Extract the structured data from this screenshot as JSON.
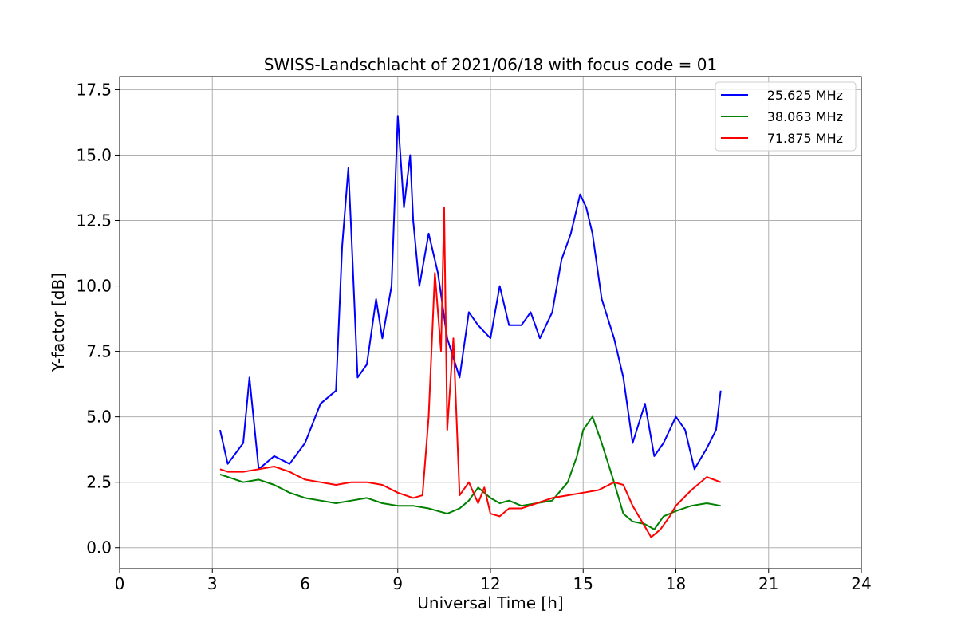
{
  "chart_data": {
    "type": "line",
    "title": "SWISS-Landschlacht of 2021/06/18 with focus code = 01",
    "xlabel": "Universal Time [h]",
    "ylabel": "Y-factor [dB]",
    "xlim": [
      0,
      24
    ],
    "ylim": [
      -0.8,
      18.0
    ],
    "xticks": [
      0,
      3,
      6,
      9,
      12,
      15,
      18,
      21,
      24
    ],
    "xtick_labels": [
      "0",
      "3",
      "6",
      "9",
      "12",
      "15",
      "18",
      "21",
      "24"
    ],
    "yticks": [
      0,
      2.5,
      5,
      7.5,
      10,
      12.5,
      15,
      17.5
    ],
    "ytick_labels": [
      "0.0",
      "2.5",
      "5.0",
      "7.5",
      "10.0",
      "12.5",
      "15.0",
      "17.5"
    ],
    "grid": true,
    "legend_position": "top-right",
    "series": [
      {
        "name": "25.625 MHz",
        "color": "#0000ff",
        "x": [
          3.25,
          3.5,
          4.0,
          4.2,
          4.5,
          5.0,
          5.5,
          6.0,
          6.5,
          7.0,
          7.2,
          7.4,
          7.5,
          7.7,
          8.0,
          8.3,
          8.5,
          8.8,
          9.0,
          9.2,
          9.4,
          9.5,
          9.7,
          10.0,
          10.3,
          10.6,
          11.0,
          11.3,
          11.6,
          12.0,
          12.3,
          12.6,
          13.0,
          13.3,
          13.6,
          14.0,
          14.3,
          14.6,
          14.9,
          15.1,
          15.3,
          15.6,
          16.0,
          16.3,
          16.6,
          17.0,
          17.3,
          17.6,
          18.0,
          18.3,
          18.6,
          19.0,
          19.3,
          19.45
        ],
        "y": [
          4.5,
          3.2,
          4.0,
          6.5,
          3.0,
          3.5,
          3.2,
          4.0,
          5.5,
          6.0,
          11.5,
          14.5,
          12.0,
          6.5,
          7.0,
          9.5,
          8.0,
          10.0,
          16.5,
          13.0,
          15.0,
          12.5,
          10.0,
          12.0,
          10.5,
          8.0,
          6.5,
          9.0,
          8.5,
          8.0,
          10.0,
          8.5,
          8.5,
          9.0,
          8.0,
          9.0,
          11.0,
          12.0,
          13.5,
          13.0,
          12.0,
          9.5,
          8.0,
          6.5,
          4.0,
          5.5,
          3.5,
          4.0,
          5.0,
          4.5,
          3.0,
          3.8,
          4.5,
          6.0
        ]
      },
      {
        "name": "38.063 MHz",
        "color": "#008000",
        "x": [
          3.25,
          3.5,
          4.0,
          4.5,
          5.0,
          5.5,
          6.0,
          6.5,
          7.0,
          7.5,
          8.0,
          8.5,
          9.0,
          9.5,
          10.0,
          10.3,
          10.6,
          11.0,
          11.3,
          11.6,
          12.0,
          12.3,
          12.6,
          13.0,
          13.5,
          14.0,
          14.5,
          14.8,
          15.0,
          15.3,
          15.6,
          16.0,
          16.3,
          16.6,
          17.0,
          17.3,
          17.6,
          18.0,
          18.5,
          19.0,
          19.45
        ],
        "y": [
          2.8,
          2.7,
          2.5,
          2.6,
          2.4,
          2.1,
          1.9,
          1.8,
          1.7,
          1.8,
          1.9,
          1.7,
          1.6,
          1.6,
          1.5,
          1.4,
          1.3,
          1.5,
          1.8,
          2.3,
          1.9,
          1.7,
          1.8,
          1.6,
          1.7,
          1.8,
          2.5,
          3.5,
          4.5,
          5.0,
          4.0,
          2.5,
          1.3,
          1.0,
          0.9,
          0.7,
          1.2,
          1.4,
          1.6,
          1.7,
          1.6
        ]
      },
      {
        "name": "71.875 MHz",
        "color": "#ff0000",
        "x": [
          3.25,
          3.5,
          4.0,
          4.5,
          5.0,
          5.5,
          6.0,
          6.5,
          7.0,
          7.5,
          8.0,
          8.5,
          9.0,
          9.5,
          9.8,
          10.0,
          10.2,
          10.4,
          10.5,
          10.6,
          10.8,
          11.0,
          11.3,
          11.6,
          11.8,
          12.0,
          12.3,
          12.6,
          13.0,
          13.5,
          14.0,
          14.5,
          15.0,
          15.5,
          16.0,
          16.3,
          16.6,
          17.0,
          17.2,
          17.5,
          17.8,
          18.0,
          18.5,
          19.0,
          19.45
        ],
        "y": [
          3.0,
          2.9,
          2.9,
          3.0,
          3.1,
          2.9,
          2.6,
          2.5,
          2.4,
          2.5,
          2.5,
          2.4,
          2.1,
          1.9,
          2.0,
          5.0,
          10.5,
          7.5,
          13.0,
          4.5,
          8.0,
          2.0,
          2.5,
          1.7,
          2.3,
          1.3,
          1.2,
          1.5,
          1.5,
          1.7,
          1.9,
          2.0,
          2.1,
          2.2,
          2.5,
          2.4,
          1.6,
          0.8,
          0.4,
          0.7,
          1.2,
          1.6,
          2.2,
          2.7,
          2.5
        ]
      }
    ]
  }
}
